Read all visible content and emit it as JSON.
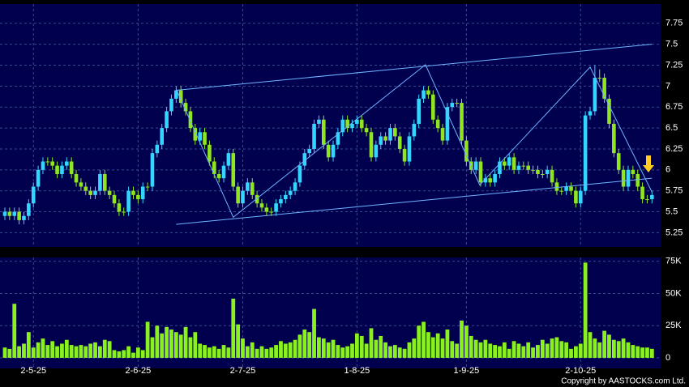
{
  "chart_data": [
    {
      "type": "candlestick",
      "ylim": [
        5.08,
        7.98
      ],
      "yticks": [
        5.25,
        5.5,
        5.75,
        6,
        6.25,
        6.5,
        6.75,
        7,
        7.25,
        7.5,
        7.75
      ],
      "grid": true,
      "up_color": "#33d6ff",
      "down_color": "#8fe620",
      "open": [
        5.45,
        5.5,
        5.45,
        5.5,
        5.4,
        5.45,
        5.6,
        5.8,
        6.0,
        6.1,
        6.1,
        6.05,
        5.95,
        6.05,
        6.1,
        5.95,
        5.85,
        5.8,
        5.75,
        5.7,
        5.75,
        5.95,
        5.75,
        5.7,
        5.6,
        5.5,
        5.5,
        5.75,
        5.7,
        5.65,
        5.8,
        5.8,
        6.2,
        6.3,
        6.5,
        6.7,
        6.85,
        6.95,
        6.8,
        6.7,
        6.5,
        6.35,
        6.45,
        6.3,
        6.1,
        5.95,
        5.9,
        6.05,
        6.2,
        5.8,
        5.6,
        5.75,
        5.85,
        5.7,
        5.6,
        5.55,
        5.5,
        5.5,
        5.6,
        5.65,
        5.7,
        5.75,
        5.85,
        6.05,
        6.2,
        6.25,
        6.55,
        6.6,
        6.3,
        6.15,
        6.3,
        6.45,
        6.6,
        6.5,
        6.55,
        6.6,
        6.5,
        6.45,
        6.15,
        6.3,
        6.4,
        6.35,
        6.5,
        6.4,
        6.25,
        6.1,
        6.4,
        6.55,
        6.85,
        6.95,
        6.9,
        6.6,
        6.5,
        6.35,
        6.75,
        6.8,
        6.8,
        6.35,
        6.1,
        6.0,
        6.1,
        5.85,
        5.9,
        5.85,
        5.95,
        6.1,
        6.05,
        6.15,
        6.0,
        6.05,
        6.05,
        6.0,
        6.0,
        5.95,
        5.95,
        6.0,
        5.85,
        5.75,
        5.75,
        5.8,
        5.75,
        5.6,
        5.75,
        6.65,
        6.7,
        7.1,
        7.1,
        6.85,
        6.55,
        6.2,
        6.0,
        5.8,
        6.0,
        5.95,
        5.8,
        5.65,
        5.65
      ],
      "high": [
        5.55,
        5.55,
        5.55,
        5.55,
        5.5,
        5.65,
        5.85,
        6.05,
        6.15,
        6.15,
        6.15,
        6.1,
        6.1,
        6.15,
        6.15,
        6.0,
        5.9,
        5.85,
        5.8,
        5.8,
        6.0,
        6.0,
        5.8,
        5.75,
        5.65,
        5.55,
        5.8,
        5.8,
        5.75,
        5.85,
        5.85,
        6.25,
        6.35,
        6.55,
        6.75,
        6.9,
        7.0,
        7.0,
        6.85,
        6.75,
        6.55,
        6.5,
        6.5,
        6.35,
        6.15,
        6.0,
        6.1,
        6.25,
        6.25,
        5.85,
        5.8,
        5.9,
        5.9,
        5.75,
        5.65,
        5.6,
        5.55,
        5.65,
        5.7,
        5.75,
        5.8,
        5.9,
        6.1,
        6.25,
        6.3,
        6.6,
        6.65,
        6.65,
        6.35,
        6.35,
        6.5,
        6.65,
        6.65,
        6.6,
        6.65,
        6.65,
        6.55,
        6.5,
        6.35,
        6.45,
        6.45,
        6.55,
        6.55,
        6.45,
        6.3,
        6.45,
        6.6,
        6.9,
        7.0,
        7.0,
        6.95,
        6.65,
        6.55,
        6.8,
        6.85,
        6.85,
        6.85,
        6.4,
        6.15,
        6.15,
        6.15,
        5.95,
        5.95,
        6.0,
        6.15,
        6.15,
        6.2,
        6.2,
        6.1,
        6.1,
        6.1,
        6.05,
        6.05,
        6.0,
        6.05,
        6.05,
        5.9,
        5.8,
        5.85,
        5.85,
        5.8,
        5.8,
        6.7,
        6.75,
        7.25,
        7.2,
        7.15,
        6.9,
        6.6,
        6.25,
        6.05,
        6.05,
        6.05,
        6.0,
        5.85,
        5.7,
        5.75
      ],
      "low": [
        5.4,
        5.4,
        5.4,
        5.35,
        5.35,
        5.4,
        5.55,
        5.75,
        5.95,
        6.05,
        6.0,
        5.9,
        5.9,
        6.0,
        5.9,
        5.8,
        5.75,
        5.7,
        5.65,
        5.65,
        5.7,
        5.7,
        5.65,
        5.55,
        5.45,
        5.45,
        5.45,
        5.65,
        5.6,
        5.6,
        5.75,
        5.75,
        6.15,
        6.25,
        6.45,
        6.65,
        6.8,
        6.75,
        6.65,
        6.45,
        6.3,
        6.3,
        6.25,
        6.05,
        5.9,
        5.85,
        5.85,
        6.0,
        5.75,
        5.55,
        5.55,
        5.7,
        5.65,
        5.55,
        5.5,
        5.45,
        5.45,
        5.45,
        5.55,
        5.6,
        5.65,
        5.7,
        5.8,
        6.0,
        6.15,
        6.2,
        6.5,
        6.25,
        6.1,
        6.1,
        6.25,
        6.4,
        6.45,
        6.45,
        6.5,
        6.45,
        6.4,
        6.1,
        6.1,
        6.25,
        6.3,
        6.3,
        6.35,
        6.2,
        6.05,
        6.05,
        6.35,
        6.5,
        6.8,
        6.85,
        6.55,
        6.45,
        6.3,
        6.3,
        6.7,
        6.75,
        6.3,
        6.05,
        5.95,
        5.95,
        5.8,
        5.8,
        5.8,
        5.8,
        5.9,
        6.0,
        6.0,
        5.95,
        5.95,
        6.0,
        5.95,
        5.95,
        5.9,
        5.9,
        5.9,
        5.8,
        5.7,
        5.7,
        5.7,
        5.7,
        5.55,
        5.55,
        5.7,
        6.6,
        6.65,
        7.05,
        6.8,
        6.5,
        6.15,
        5.95,
        5.75,
        5.75,
        5.9,
        5.75,
        5.6,
        5.6,
        5.6
      ],
      "close": [
        5.5,
        5.45,
        5.5,
        5.4,
        5.45,
        5.6,
        5.8,
        6.0,
        6.1,
        6.1,
        6.05,
        5.95,
        6.05,
        6.1,
        5.95,
        5.85,
        5.8,
        5.75,
        5.7,
        5.75,
        5.95,
        5.75,
        5.7,
        5.6,
        5.5,
        5.5,
        5.75,
        5.7,
        5.65,
        5.8,
        5.8,
        6.2,
        6.3,
        6.5,
        6.7,
        6.85,
        6.95,
        6.8,
        6.7,
        6.5,
        6.35,
        6.45,
        6.3,
        6.1,
        5.95,
        5.9,
        6.05,
        6.2,
        5.8,
        5.6,
        5.75,
        5.85,
        5.7,
        5.6,
        5.55,
        5.5,
        5.5,
        5.6,
        5.65,
        5.7,
        5.75,
        5.85,
        6.05,
        6.2,
        6.25,
        6.55,
        6.6,
        6.3,
        6.15,
        6.3,
        6.45,
        6.6,
        6.5,
        6.55,
        6.6,
        6.5,
        6.45,
        6.15,
        6.3,
        6.4,
        6.35,
        6.5,
        6.4,
        6.25,
        6.1,
        6.4,
        6.55,
        6.85,
        6.95,
        6.9,
        6.6,
        6.5,
        6.35,
        6.75,
        6.8,
        6.8,
        6.35,
        6.1,
        6.0,
        6.1,
        5.85,
        5.9,
        5.85,
        5.95,
        6.1,
        6.05,
        6.15,
        6.0,
        6.05,
        6.05,
        6.0,
        6.0,
        5.95,
        5.95,
        6.0,
        5.85,
        5.75,
        5.75,
        5.8,
        5.75,
        5.6,
        5.75,
        6.65,
        6.7,
        7.1,
        7.1,
        6.85,
        6.55,
        6.2,
        6.0,
        5.8,
        6.0,
        5.95,
        5.8,
        5.65,
        5.65,
        5.7
      ],
      "line_color": "#6fb4ff",
      "trend_lines": [
        {
          "points": [
            [
              36,
              6.95
            ],
            [
              136,
              7.5
            ]
          ]
        },
        {
          "points": [
            [
              36,
              5.35
            ],
            [
              136,
              5.9
            ]
          ]
        },
        {
          "points": [
            [
              36,
              6.965
            ],
            [
              48,
              5.434
            ],
            [
              88.4,
              7.256
            ],
            [
              99.8,
              5.82
            ],
            [
              123,
              7.227
            ],
            [
              136,
              5.735
            ]
          ]
        }
      ]
    },
    {
      "type": "bar",
      "categories": [
        null,
        null,
        null,
        null,
        null,
        null,
        "2-5-25",
        null,
        null,
        null,
        null,
        null,
        null,
        null,
        null,
        null,
        null,
        null,
        null,
        null,
        null,
        null,
        null,
        null,
        null,
        null,
        null,
        null,
        "2-6-25",
        null,
        null,
        null,
        null,
        null,
        null,
        null,
        null,
        null,
        null,
        null,
        null,
        null,
        null,
        null,
        null,
        null,
        null,
        null,
        null,
        null,
        "2-7-25",
        null,
        null,
        null,
        null,
        null,
        null,
        null,
        null,
        null,
        null,
        null,
        null,
        null,
        null,
        null,
        null,
        null,
        null,
        null,
        null,
        null,
        null,
        null,
        "1-8-25",
        null,
        null,
        null,
        null,
        null,
        null,
        null,
        null,
        null,
        null,
        null,
        null,
        null,
        null,
        null,
        null,
        null,
        null,
        null,
        null,
        null,
        null,
        "1-9-25",
        null,
        null,
        null,
        null,
        null,
        null,
        null,
        null,
        null,
        null,
        null,
        null,
        null,
        null,
        null,
        null,
        null,
        null,
        null,
        null,
        null,
        null,
        null,
        "2-10-25",
        null,
        null,
        null,
        null,
        null,
        null,
        null,
        null,
        null,
        null,
        null,
        null,
        null,
        null,
        null
      ],
      "values": [
        8000,
        7000,
        42000,
        9000,
        11000,
        20000,
        8000,
        12000,
        15000,
        10000,
        13000,
        9000,
        11000,
        14000,
        10000,
        9000,
        10000,
        9000,
        11000,
        12000,
        9000,
        14000,
        13000,
        6000,
        5000,
        6000,
        9000,
        4000,
        8000,
        6000,
        28000,
        16000,
        25000,
        19000,
        24000,
        22000,
        20000,
        18000,
        24000,
        16000,
        20000,
        11000,
        10000,
        8000,
        9000,
        7000,
        10000,
        8000,
        46000,
        26000,
        15000,
        9000,
        12000,
        7000,
        9000,
        7000,
        8000,
        10000,
        13000,
        11000,
        12000,
        14000,
        18000,
        22000,
        20000,
        38000,
        16000,
        15000,
        12000,
        14000,
        10000,
        8000,
        9000,
        11000,
        19000,
        17000,
        11000,
        23000,
        14000,
        17000,
        12000,
        9000,
        10000,
        8000,
        7000,
        12000,
        15000,
        25000,
        28000,
        20000,
        16000,
        19000,
        15000,
        22000,
        13000,
        11000,
        29000,
        25000,
        17000,
        14000,
        12000,
        14000,
        11000,
        10000,
        9000,
        12000,
        7000,
        13000,
        11000,
        9000,
        12000,
        8000,
        10000,
        14000,
        11000,
        15000,
        16000,
        13000,
        12000,
        7000,
        9000,
        11000,
        74000,
        20000,
        15000,
        12000,
        21000,
        18000,
        14000,
        13000,
        15000,
        12000,
        10000,
        9000,
        8000,
        8000,
        7000
      ],
      "color": "#8af01e",
      "ylim": [
        -8200,
        78000
      ],
      "yticks": [
        0,
        {
          "value": 25000,
          "label": "25K"
        },
        {
          "value": 50000,
          "label": "50K"
        },
        {
          "value": 75000,
          "label": "75K"
        }
      ],
      "grid": true
    }
  ],
  "copyright": "Copyright by AASTOCKS.com Ltd."
}
